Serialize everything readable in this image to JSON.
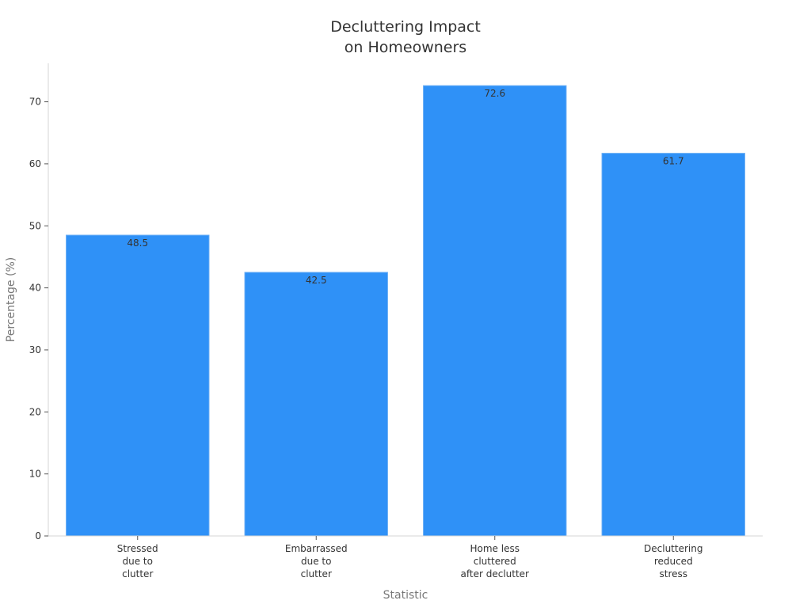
{
  "chart_data": {
    "type": "bar",
    "title_lines": [
      "Decluttering Impact",
      "on Homeowners"
    ],
    "xlabel": "Statistic",
    "ylabel": "Percentage (%)",
    "categories": [
      [
        "Stressed",
        "due to",
        "clutter"
      ],
      [
        "Embarrassed",
        "due to",
        "clutter"
      ],
      [
        "Home less",
        "cluttered",
        "after declutter"
      ],
      [
        "Decluttering",
        "reduced",
        "stress"
      ]
    ],
    "values": [
      48.5,
      42.5,
      72.6,
      61.7
    ],
    "value_labels": [
      "48.5",
      "42.5",
      "72.6",
      "61.7"
    ],
    "yticks": [
      0,
      10,
      20,
      30,
      40,
      50,
      60,
      70
    ],
    "ylim": [
      0,
      76.2
    ],
    "grid": false,
    "bar_color": "#2f91f7",
    "bar_edge_color": "#6aaef5"
  }
}
